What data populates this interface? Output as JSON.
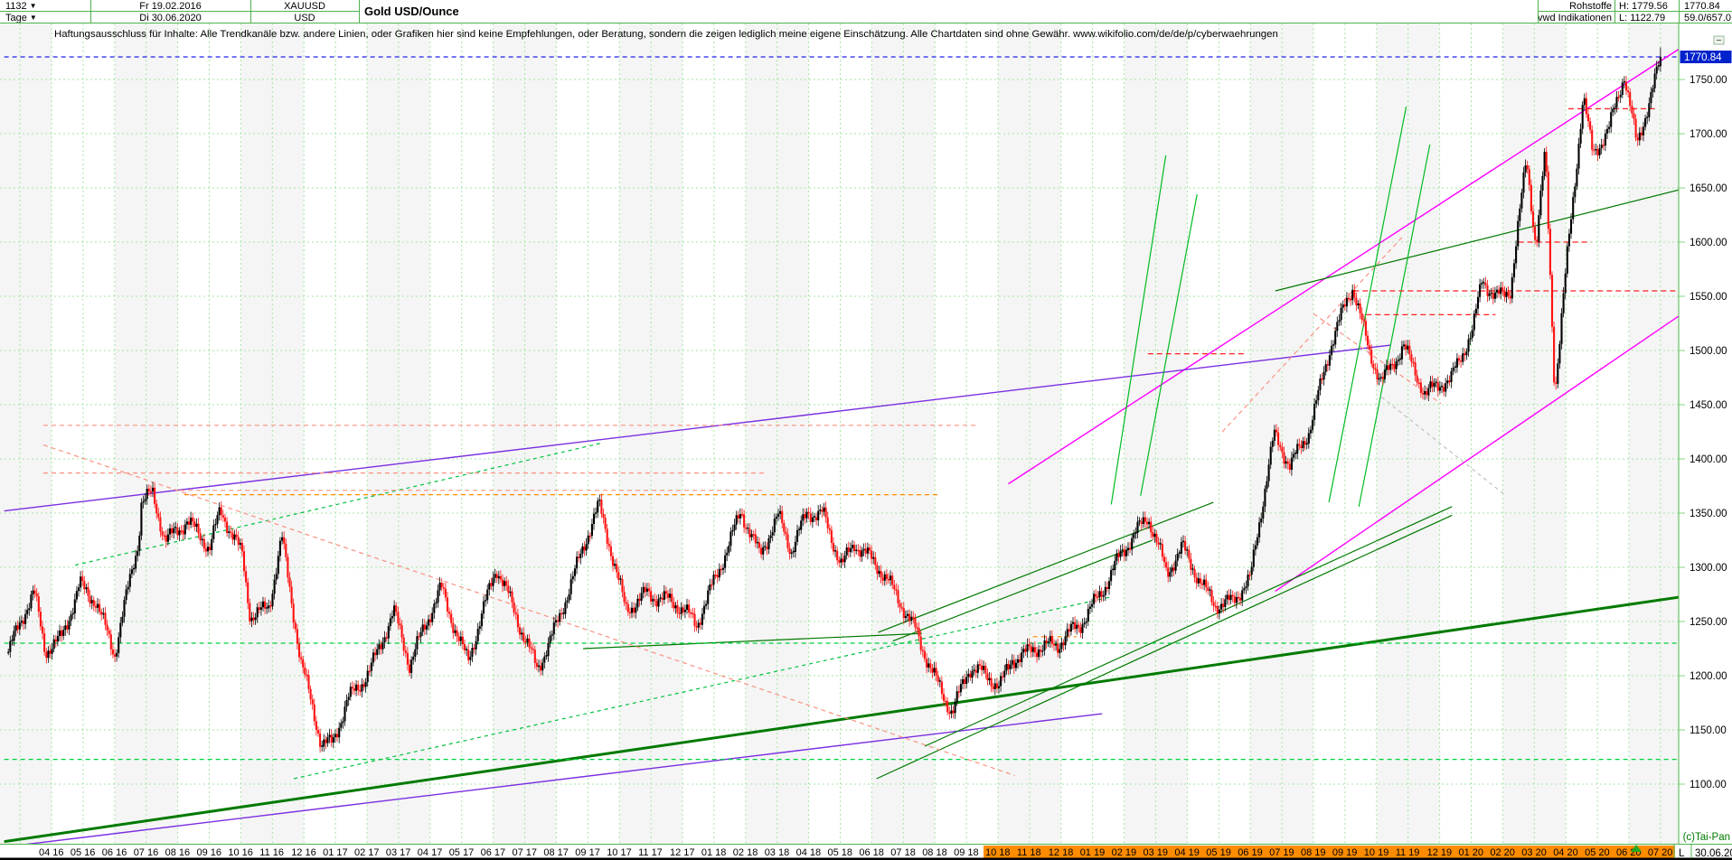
{
  "header": {
    "left": {
      "bars_count": "1132",
      "period": "Tage",
      "date_from": "Fr 19.02.2016",
      "date_to": "Di 30.06.2020",
      "symbol": "XAUUSD",
      "currency": "USD",
      "title": "Gold USD/Ounce"
    },
    "right": {
      "category": "Rohstoffe",
      "source": "vwd Indikationen",
      "high_label": "H: 1779.56",
      "low_label": "L: 1122.79",
      "last_price": "1770.84",
      "indication": "59.0/657.0"
    }
  },
  "disclaimer": "Haftungsausschluss für Inhalte: Alle Trendkanäle bzw. andere Linien, oder Grafiken hier sind keine Empfehlungen, oder Beratung, sondern die zeigen lediglich meine eigene Einschätzung. Alle Chartdaten sind ohne Gewähr.  www.wikifolio.com/de/de/p/cyberwaehrungen",
  "icons": {
    "dropdown": "▼",
    "collapse": "−",
    "last_bar_marker": "▲"
  },
  "footer": {
    "copyright": "(c)Tai-Pan",
    "last_label": "L",
    "last_date": "30.06.20"
  },
  "chart_data": {
    "type": "candlestick",
    "title": "Gold USD/Ounce",
    "session_high": 1779.56,
    "session_low": 1122.79,
    "current_price": 1770.84,
    "current_price_label": "1770.84",
    "y_axis": {
      "min": 1100,
      "max": 1750,
      "step": 50,
      "labels": [
        "1750.00",
        "1700.00",
        "1650.00",
        "1600.00",
        "1550.00",
        "1500.00",
        "1450.00",
        "1400.00",
        "1350.00",
        "1300.00",
        "1250.00",
        "1200.00",
        "1150.00",
        "1100.00"
      ]
    },
    "x_axis": {
      "month_labels": [
        "04 16",
        "05 16",
        "06 16",
        "07 16",
        "08 16",
        "09 16",
        "10 16",
        "11 16",
        "12 16",
        "01 17",
        "02 17",
        "03 17",
        "04 17",
        "05 17",
        "06 17",
        "07 17",
        "08 17",
        "09 17",
        "10 17",
        "11 17",
        "12 17",
        "01 18",
        "02 18",
        "03 18",
        "04 18",
        "05 18",
        "06 18",
        "07 18",
        "08 18",
        "09 18",
        "10 18",
        "11 18",
        "12 18",
        "01 19",
        "02 19",
        "03 19",
        "04 19",
        "05 19",
        "06 19",
        "07 19",
        "08 19",
        "09 19",
        "10 19",
        "11 19",
        "12 19",
        "01 20",
        "02 20",
        "03 20",
        "04 20",
        "05 20",
        "06 20",
        "07 20"
      ],
      "highlighted_from_label": "10 18",
      "highlighted_from_index": 30
    },
    "price_path_anchors": [
      [
        -1.37,
        1222
      ],
      [
        -1.0,
        1243
      ],
      [
        -0.55,
        1270
      ],
      [
        -0.2,
        1218
      ],
      [
        0.3,
        1237
      ],
      [
        0.9,
        1292
      ],
      [
        1.4,
        1272
      ],
      [
        2.0,
        1214
      ],
      [
        2.75,
        1318
      ],
      [
        2.85,
        1356
      ],
      [
        3.2,
        1370
      ],
      [
        3.6,
        1332
      ],
      [
        4.3,
        1348
      ],
      [
        5.0,
        1312
      ],
      [
        5.35,
        1344
      ],
      [
        6.05,
        1310
      ],
      [
        6.3,
        1258
      ],
      [
        6.9,
        1272
      ],
      [
        7.3,
        1332
      ],
      [
        7.9,
        1208
      ],
      [
        8.55,
        1130
      ],
      [
        8.9,
        1135
      ],
      [
        9.4,
        1184
      ],
      [
        10.1,
        1212
      ],
      [
        10.85,
        1255
      ],
      [
        11.35,
        1202
      ],
      [
        12.35,
        1286
      ],
      [
        13.2,
        1218
      ],
      [
        14.1,
        1293
      ],
      [
        14.85,
        1242
      ],
      [
        15.4,
        1212
      ],
      [
        16.5,
        1288
      ],
      [
        17.35,
        1350
      ],
      [
        18.2,
        1264
      ],
      [
        18.85,
        1284
      ],
      [
        19.6,
        1268
      ],
      [
        20.45,
        1240
      ],
      [
        21.85,
        1360
      ],
      [
        22.45,
        1312
      ],
      [
        23.05,
        1340
      ],
      [
        23.45,
        1308
      ],
      [
        23.95,
        1350
      ],
      [
        24.45,
        1356
      ],
      [
        25.05,
        1308
      ],
      [
        25.45,
        1322
      ],
      [
        26.1,
        1296
      ],
      [
        26.6,
        1278
      ],
      [
        27.4,
        1248
      ],
      [
        28.55,
        1164
      ],
      [
        29.1,
        1200
      ],
      [
        30.05,
        1192
      ],
      [
        30.45,
        1222
      ],
      [
        31.1,
        1230
      ],
      [
        31.9,
        1222
      ],
      [
        32.6,
        1242
      ],
      [
        33.9,
        1320
      ],
      [
        34.75,
        1342
      ],
      [
        35.35,
        1287
      ],
      [
        35.85,
        1318
      ],
      [
        36.9,
        1272
      ],
      [
        37.45,
        1268
      ],
      [
        38.0,
        1282
      ],
      [
        38.75,
        1420
      ],
      [
        39.25,
        1400
      ],
      [
        39.85,
        1432
      ],
      [
        40.55,
        1502
      ],
      [
        41.25,
        1552
      ],
      [
        41.75,
        1498
      ],
      [
        42.15,
        1476
      ],
      [
        42.85,
        1512
      ],
      [
        43.55,
        1456
      ],
      [
        44.35,
        1466
      ],
      [
        45.05,
        1522
      ],
      [
        45.35,
        1574
      ],
      [
        45.75,
        1556
      ],
      [
        46.25,
        1558
      ],
      [
        46.75,
        1672
      ],
      [
        47.05,
        1588
      ],
      [
        47.35,
        1678
      ],
      [
        47.65,
        1458
      ],
      [
        48.05,
        1592
      ],
      [
        48.55,
        1742
      ],
      [
        48.85,
        1688
      ],
      [
        49.35,
        1702
      ],
      [
        49.85,
        1748
      ],
      [
        50.25,
        1682
      ],
      [
        50.65,
        1728
      ],
      [
        51.0,
        1770.84
      ]
    ],
    "trendlines": [
      {
        "name": "current-price-dashed-line",
        "color": "#2222ee",
        "width": 1.2,
        "dash": "5 4",
        "from": [
          -1.5,
          1770.84
        ],
        "to": [
          52.6,
          1770.84
        ]
      },
      {
        "name": "magenta-channel-upper",
        "color": "#ff00ff",
        "width": 1.4,
        "dash": null,
        "from": [
          30.33,
          1377
        ],
        "to": [
          52.64,
          1798
        ]
      },
      {
        "name": "magenta-channel-lower",
        "color": "#ff00ff",
        "width": 1.4,
        "dash": null,
        "from": [
          38.79,
          1278
        ],
        "to": [
          54.31,
          1586
        ]
      },
      {
        "name": "violet-longterm-upper",
        "color": "#7b2fe0",
        "width": 1.4,
        "dash": null,
        "from": [
          -1.5,
          1352
        ],
        "to": [
          42.45,
          1505
        ]
      },
      {
        "name": "violet-longterm-lower",
        "color": "#7b2fe0",
        "width": 1.4,
        "dash": null,
        "from": [
          -1.5,
          1042
        ],
        "to": [
          33.3,
          1165
        ]
      },
      {
        "name": "thick-green-support",
        "color": "#007a00",
        "width": 3,
        "dash": null,
        "from": [
          -1.5,
          1047
        ],
        "to": [
          54.31,
          1284
        ]
      },
      {
        "name": "green-channel-2018-upper",
        "color": "#007a00",
        "width": 1.2,
        "dash": null,
        "from": [
          27.68,
          1135
        ],
        "to": [
          44.39,
          1356
        ]
      },
      {
        "name": "green-channel-2018-lower",
        "color": "#007a00",
        "width": 1.2,
        "dash": null,
        "from": [
          26.15,
          1105
        ],
        "to": [
          44.39,
          1348
        ]
      },
      {
        "name": "green-channel-mid-upper",
        "color": "#007a00",
        "width": 1.2,
        "dash": null,
        "from": [
          26.2,
          1240
        ],
        "to": [
          36.83,
          1360
        ]
      },
      {
        "name": "green-channel-mid-lower",
        "color": "#007a00",
        "width": 1.2,
        "dash": null,
        "from": [
          26.67,
          1232
        ],
        "to": [
          34.89,
          1325
        ]
      },
      {
        "name": "green-upper-right",
        "color": "#007a00",
        "width": 1.2,
        "dash": null,
        "from": [
          38.79,
          1555
        ],
        "to": [
          54.31,
          1668
        ]
      },
      {
        "name": "green-flat-2017",
        "color": "#007a00",
        "width": 1.2,
        "dash": null,
        "from": [
          16.85,
          1225
        ],
        "to": [
          27.59,
          1239
        ]
      },
      {
        "name": "steep-green-sep19-a",
        "color": "#00bb22",
        "width": 1.2,
        "dash": null,
        "from": [
          33.59,
          1358
        ],
        "to": [
          35.32,
          1680
        ]
      },
      {
        "name": "steep-green-sep19-b",
        "color": "#00bb22",
        "width": 1.2,
        "dash": null,
        "from": [
          34.52,
          1366
        ],
        "to": [
          36.31,
          1644
        ]
      },
      {
        "name": "steep-green-2020-a",
        "color": "#00bb22",
        "width": 1.2,
        "dash": null,
        "from": [
          40.49,
          1360
        ],
        "to": [
          42.94,
          1725
        ]
      },
      {
        "name": "steep-green-2020-b",
        "color": "#00bb22",
        "width": 1.2,
        "dash": null,
        "from": [
          41.44,
          1356
        ],
        "to": [
          43.69,
          1690
        ]
      },
      {
        "name": "green-dashed-support-1230",
        "color": "#00d040",
        "width": 1.2,
        "dash": "5 4",
        "from": [
          -1.5,
          1230
        ],
        "to": [
          52.61,
          1230
        ]
      },
      {
        "name": "green-dashed-low-1122",
        "color": "#00d040",
        "width": 1.2,
        "dash": "5 4",
        "from": [
          -1.5,
          1122.79
        ],
        "to": [
          52.61,
          1122.79
        ]
      },
      {
        "name": "green-dotted-diag-left",
        "color": "#00c040",
        "width": 1.2,
        "dash": "4 4",
        "from": [
          0.75,
          1302
        ],
        "to": [
          17.49,
          1415
        ]
      },
      {
        "name": "green-dotted-diag-mid",
        "color": "#00c040",
        "width": 1.2,
        "dash": "4 4",
        "from": [
          7.68,
          1105
        ],
        "to": [
          33.62,
          1273
        ]
      },
      {
        "name": "salmon-resist-1431",
        "color": "#fb9183",
        "width": 1.2,
        "dash": "5 4",
        "from": [
          -0.26,
          1431
        ],
        "to": [
          29.32,
          1431
        ]
      },
      {
        "name": "salmon-resist-1387",
        "color": "#fb9183",
        "width": 1.2,
        "dash": "5 4",
        "from": [
          -0.26,
          1387
        ],
        "to": [
          22.63,
          1387
        ]
      },
      {
        "name": "salmon-resist-1371",
        "color": "#fb9183",
        "width": 1.2,
        "dash": "5 4",
        "from": [
          4.07,
          1371
        ],
        "to": [
          22.63,
          1371
        ]
      },
      {
        "name": "salmon-falling-diag",
        "color": "#fb9183",
        "width": 1.2,
        "dash": "5 4",
        "from": [
          -0.26,
          1413
        ],
        "to": [
          30.53,
          1108
        ]
      },
      {
        "name": "salmon-rising-diag",
        "color": "#fb9183",
        "width": 1.2,
        "dash": "5 4",
        "from": [
          37.11,
          1425
        ],
        "to": [
          42.89,
          1607
        ]
      },
      {
        "name": "salmon-short-falling",
        "color": "#fb9183",
        "width": 1.2,
        "dash": "5 4",
        "from": [
          40.0,
          1534
        ],
        "to": [
          44.04,
          1451
        ]
      },
      {
        "name": "orange-resist-1367",
        "color": "#ff8c00",
        "width": 1.2,
        "dash": "5 4",
        "from": [
          4.21,
          1367
        ],
        "to": [
          28.17,
          1367
        ]
      },
      {
        "name": "orange-short-1236",
        "color": "#ff8c00",
        "width": 1.2,
        "dash": "5 4",
        "from": [
          31.11,
          1236
        ],
        "to": [
          32.5,
          1236
        ]
      },
      {
        "name": "red-resist-1555",
        "color": "#ff2020",
        "width": 1.2,
        "dash": "6 4",
        "from": [
          41.27,
          1555
        ],
        "to": [
          52.93,
          1555
        ]
      },
      {
        "name": "red-resist-1533",
        "color": "#ff2020",
        "width": 1.2,
        "dash": "6 4",
        "from": [
          41.67,
          1533
        ],
        "to": [
          45.77,
          1533
        ]
      },
      {
        "name": "red-resist-1497",
        "color": "#ff2020",
        "width": 1.2,
        "dash": "6 4",
        "from": [
          34.75,
          1497
        ],
        "to": [
          37.84,
          1497
        ]
      },
      {
        "name": "red-resist-1600",
        "color": "#ff2020",
        "width": 1.2,
        "dash": "6 4",
        "from": [
          46.49,
          1600
        ],
        "to": [
          48.8,
          1600
        ]
      },
      {
        "name": "red-resist-1723",
        "color": "#ff2020",
        "width": 1.2,
        "dash": "6 4",
        "from": [
          48.08,
          1723
        ],
        "to": [
          50.82,
          1723
        ]
      },
      {
        "name": "gray-dashed-diag",
        "color": "#c0c0c0",
        "width": 1.2,
        "dash": "4 4",
        "from": [
          42.16,
          1457
        ],
        "to": [
          46.06,
          1367
        ]
      }
    ],
    "colors": {
      "up_bar": "#000000",
      "down_bar": "#ff1111",
      "grid": "#a5e6a5",
      "band": "#f5f5f5",
      "border_green": "#4db34d",
      "axis_highlight_bg": "#0022cc",
      "month_highlight": "#ff8c00",
      "copyright_green": "#007a00",
      "marker_green": "#22aa22"
    }
  }
}
